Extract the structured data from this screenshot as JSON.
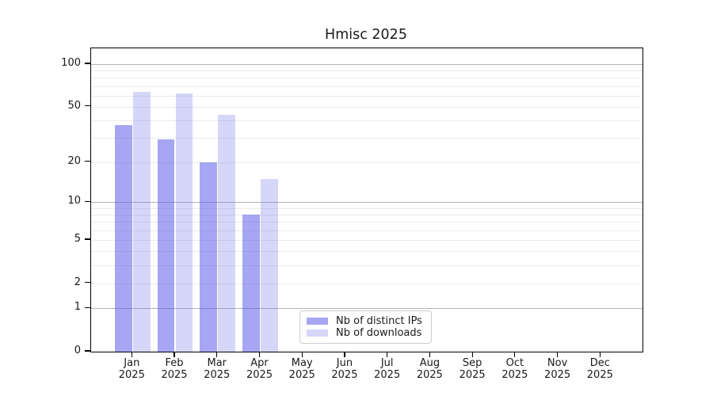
{
  "title": "Hmisc 2025",
  "chart_data": {
    "type": "bar",
    "title": "Hmisc 2025",
    "categories": [
      "Jan 2025",
      "Feb 2025",
      "Mar 2025",
      "Apr 2025",
      "May 2025",
      "Jun 2025",
      "Jul 2025",
      "Aug 2025",
      "Sep 2025",
      "Oct 2025",
      "Nov 2025",
      "Dec 2025"
    ],
    "series": [
      {
        "name": "Nb of distinct IPs",
        "color": "rgba(85,85,230,0.52)",
        "values": [
          37,
          29,
          20,
          8,
          null,
          null,
          null,
          null,
          null,
          null,
          null,
          null
        ]
      },
      {
        "name": "Nb of downloads",
        "color": "rgba(85,85,230,0.24)",
        "values": [
          64,
          62,
          44,
          15,
          null,
          null,
          null,
          null,
          null,
          null,
          null,
          null
        ]
      }
    ],
    "xlabel": "",
    "ylabel": "",
    "yscale": "log1p",
    "ytick_values": [
      0,
      1,
      2,
      5,
      10,
      20,
      50,
      100
    ],
    "grid_minor_values": [
      2,
      3,
      4,
      5,
      6,
      7,
      8,
      9,
      20,
      30,
      40,
      50,
      60,
      70,
      80,
      90
    ],
    "grid_major_values": [
      1,
      10,
      100
    ],
    "ylim": [
      0,
      128
    ],
    "grid": "on",
    "legend_position": "lower center-left inside plot",
    "colors": {
      "bar_distinct_ips": "rgba(85,85,230,0.52)",
      "bar_downloads": "rgba(85,85,230,0.24)",
      "grid_minor": "#ebebeb",
      "grid_major": "#b4b4b4",
      "axis": "#000000",
      "text": "#1a1a1a",
      "legend_border": "#cccccc"
    }
  }
}
